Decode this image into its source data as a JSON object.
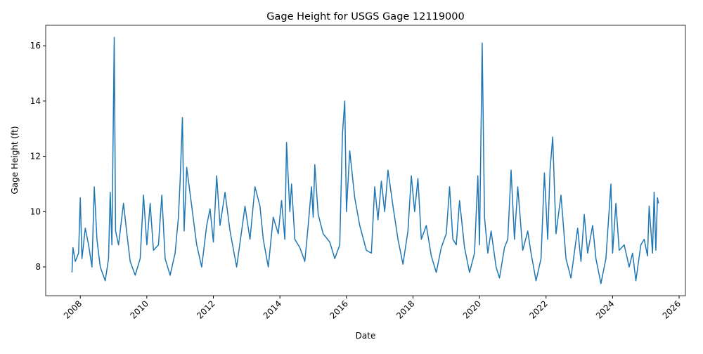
{
  "chart_data": {
    "type": "line",
    "title": "Gage Height for USGS Gage 12119000",
    "x_label": "Date",
    "y_label": "Gage Height (ft)",
    "color": "#1f77b4",
    "x": [
      2007.75,
      2007.78,
      2007.85,
      2007.95,
      2008.0,
      2008.05,
      2008.15,
      2008.25,
      2008.35,
      2008.42,
      2008.5,
      2008.6,
      2008.75,
      2008.85,
      2008.9,
      2008.95,
      2009.02,
      2009.06,
      2009.15,
      2009.3,
      2009.4,
      2009.5,
      2009.65,
      2009.8,
      2009.9,
      2010.0,
      2010.1,
      2010.2,
      2010.35,
      2010.45,
      2010.55,
      2010.7,
      2010.85,
      2010.95,
      2011.0,
      2011.07,
      2011.12,
      2011.2,
      2011.35,
      2011.5,
      2011.65,
      2011.8,
      2011.9,
      2012.0,
      2012.1,
      2012.2,
      2012.35,
      2012.5,
      2012.7,
      2012.85,
      2012.95,
      2013.1,
      2013.25,
      2013.4,
      2013.5,
      2013.65,
      2013.8,
      2013.95,
      2014.05,
      2014.15,
      2014.2,
      2014.3,
      2014.35,
      2014.45,
      2014.6,
      2014.75,
      2014.85,
      2014.95,
      2015.0,
      2015.05,
      2015.15,
      2015.3,
      2015.5,
      2015.65,
      2015.8,
      2015.88,
      2015.95,
      2016.0,
      2016.1,
      2016.25,
      2016.4,
      2016.6,
      2016.75,
      2016.85,
      2016.95,
      2017.05,
      2017.15,
      2017.25,
      2017.4,
      2017.55,
      2017.7,
      2017.85,
      2017.95,
      2018.05,
      2018.15,
      2018.25,
      2018.4,
      2018.55,
      2018.7,
      2018.85,
      2019.0,
      2019.1,
      2019.2,
      2019.3,
      2019.4,
      2019.55,
      2019.7,
      2019.85,
      2019.95,
      2020.0,
      2020.08,
      2020.15,
      2020.25,
      2020.35,
      2020.5,
      2020.6,
      2020.75,
      2020.85,
      2020.95,
      2021.05,
      2021.15,
      2021.3,
      2021.45,
      2021.55,
      2021.7,
      2021.85,
      2021.95,
      2022.05,
      2022.12,
      2022.2,
      2022.3,
      2022.45,
      2022.6,
      2022.75,
      2022.85,
      2022.95,
      2023.05,
      2023.15,
      2023.25,
      2023.4,
      2023.5,
      2023.65,
      2023.8,
      2023.95,
      2024.0,
      2024.1,
      2024.2,
      2024.35,
      2024.5,
      2024.6,
      2024.7,
      2024.85,
      2024.95,
      2025.05,
      2025.1,
      2025.2,
      2025.25,
      2025.3,
      2025.35,
      2025.38
    ],
    "values": [
      7.8,
      8.7,
      8.2,
      8.5,
      10.5,
      8.3,
      9.4,
      8.8,
      8.0,
      10.9,
      9.0,
      8.0,
      7.5,
      8.3,
      10.7,
      8.8,
      16.3,
      9.3,
      8.8,
      10.3,
      9.2,
      8.2,
      7.7,
      8.3,
      10.6,
      8.8,
      10.3,
      8.6,
      8.8,
      10.6,
      8.3,
      7.7,
      8.5,
      9.8,
      11.1,
      13.4,
      9.3,
      11.6,
      10.2,
      8.8,
      8.0,
      9.5,
      10.1,
      8.9,
      11.3,
      9.5,
      10.7,
      9.3,
      8.0,
      9.3,
      10.2,
      9.0,
      10.9,
      10.2,
      9.0,
      8.0,
      9.8,
      9.2,
      10.4,
      9.0,
      12.5,
      10.0,
      11.0,
      9.0,
      8.7,
      8.2,
      9.5,
      10.9,
      9.8,
      11.7,
      9.9,
      9.2,
      8.9,
      8.3,
      8.8,
      12.8,
      14.0,
      10.0,
      12.2,
      10.5,
      9.5,
      8.6,
      8.5,
      10.9,
      9.7,
      11.1,
      10.0,
      11.5,
      10.2,
      9.0,
      8.1,
      9.3,
      11.3,
      10.0,
      11.2,
      9.0,
      9.5,
      8.4,
      7.8,
      8.7,
      9.2,
      10.9,
      9.0,
      8.8,
      10.4,
      8.7,
      7.8,
      8.5,
      11.3,
      8.8,
      16.1,
      9.8,
      8.5,
      9.3,
      8.0,
      7.6,
      8.7,
      9.0,
      11.5,
      9.0,
      10.9,
      8.6,
      9.3,
      8.5,
      7.5,
      8.3,
      11.4,
      9.0,
      11.5,
      12.7,
      9.2,
      10.6,
      8.3,
      7.6,
      8.5,
      9.4,
      8.2,
      9.9,
      8.5,
      9.5,
      8.3,
      7.4,
      8.3,
      11.0,
      8.5,
      10.3,
      8.6,
      8.8,
      8.0,
      8.5,
      7.5,
      8.8,
      9.0,
      8.4,
      10.2,
      8.5,
      10.7,
      8.6,
      10.5,
      10.3
    ],
    "xlim": [
      2006.96,
      2026.19
    ],
    "xticks": [
      2008,
      2010,
      2012,
      2014,
      2016,
      2018,
      2020,
      2022,
      2024,
      2026
    ],
    "ylim": [
      6.96,
      16.74
    ],
    "yticks": [
      8,
      10,
      12,
      14,
      16
    ]
  }
}
